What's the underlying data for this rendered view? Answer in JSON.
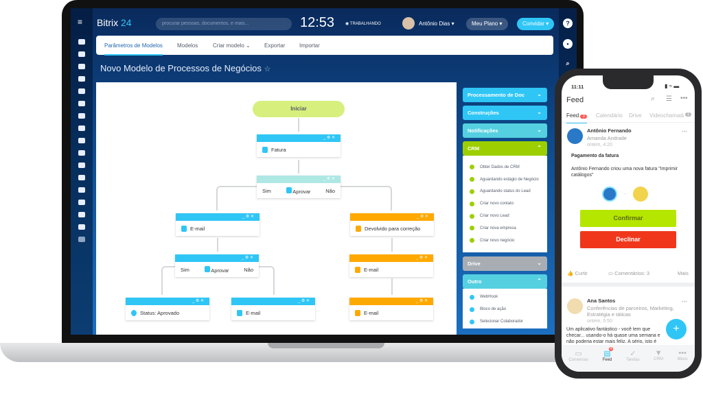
{
  "laptop": {
    "header": {
      "logo": "Bitrix",
      "logo_num": "24",
      "search_placeholder": "procurar pessoas, documentos, e mais...",
      "time": "12:53",
      "status": "TRABALHANDO",
      "user": "Antônio Dias",
      "plan": "Meu Plano",
      "invite": "Convidar"
    },
    "tabs": [
      "Parâmetros de Modelos",
      "Modelos",
      "Criar modelo",
      "Exportar",
      "Importar"
    ],
    "title": "Novo Modelo de Processos de Negócios",
    "flow": {
      "start": "Iniciar",
      "fatura": "Fatura",
      "approve": "Aprovar",
      "yes": "Sim",
      "no": "Não",
      "email": "E-mail",
      "returned": "Devolvido para correção",
      "status": "Status: Aprovado"
    },
    "panel": {
      "sections": [
        "Processamento de Doc",
        "Construções",
        "Notificações",
        "CRM",
        "Drive",
        "Outro"
      ],
      "crm_items": [
        "Obter Dados de CRM",
        "Aguardando estágio de Negócio",
        "Aguardando status do Lead",
        "Criar novo contato",
        "Criar novo Lead",
        "Criar nova empresa",
        "Criar novo negócio"
      ],
      "other_items": [
        "WebHook",
        "Bloco de ação",
        "Selecionar Colaborador"
      ]
    },
    "colors": {
      "blue": "#2fc6f6",
      "orange": "#ffa900",
      "green": "#9dcf00",
      "start": "#d7ef7d"
    }
  },
  "phone": {
    "clock": "11:11",
    "title": "Feed",
    "tabs": [
      "Feed",
      "Calendário",
      "Drive",
      "Videochamadas"
    ],
    "feed_badge": "3",
    "more_badge": "1",
    "post1": {
      "author": "Antônio Fernando",
      "to": "Amanda Andrade",
      "time": "ontem, 4:20",
      "subject": "Pagamento da fatura",
      "body": "Antônio Fernando criou uma nova fatura \"Imprimir catálogos\"",
      "confirm": "Confirmar",
      "decline": "Declinar",
      "like": "Curtir",
      "comments": "Comentários: 3",
      "more": "Mais"
    },
    "post2": {
      "author": "Ana Santos",
      "to": "Conferências de parceiros, Marketing, Estratégia e táticas",
      "time": "ontem, 5:50",
      "body": "Um aplicativo fantástico - você tem que checar... usando-o há quase uma semana e não poderia estar mais feliz. A sério, isto é como uma revolução ou algo"
    },
    "nav": [
      "Conversas",
      "Feed",
      "Tarefas",
      "CRM",
      "Menu"
    ],
    "nav_badge": "4"
  }
}
